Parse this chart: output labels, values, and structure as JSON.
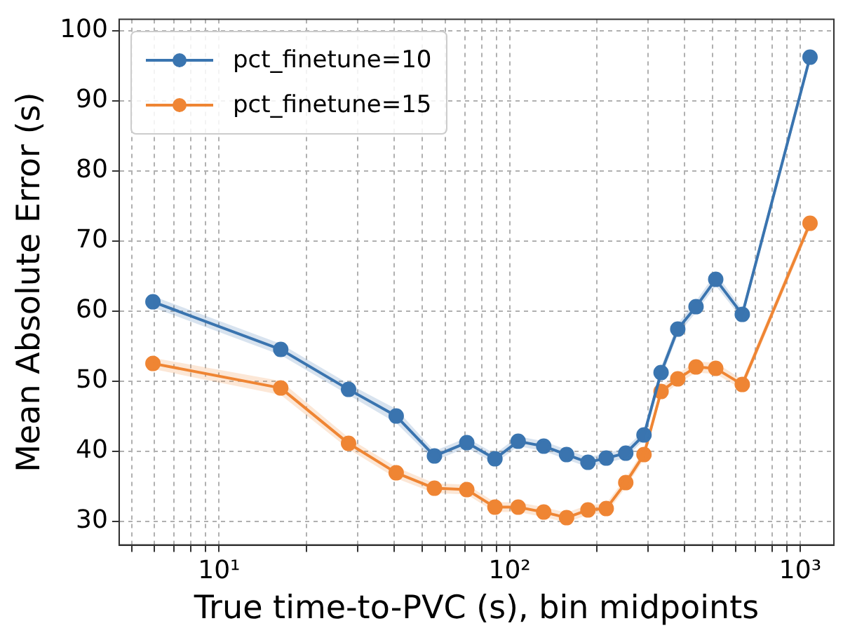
{
  "chart_data": {
    "type": "line",
    "xlabel": "True time-to-PVC (s), bin midpoints",
    "ylabel": "Mean Absolute Error (s)",
    "x": [
      5.92,
      16.3,
      27.9,
      40.7,
      55.1,
      71.2,
      89,
      107,
      131,
      157,
      186,
      215,
      251,
      290,
      332,
      379,
      438,
      512,
      632,
      1081
    ],
    "series": [
      {
        "name": "pct_finetune=10",
        "color": "#3a75b0",
        "values": [
          61.3,
          54.5,
          48.8,
          45,
          39.3,
          41.2,
          38.9,
          41.4,
          40.7,
          39.5,
          38.4,
          39,
          39.7,
          42.3,
          51.2,
          57.4,
          60.6,
          64.5,
          59.5,
          96.2
        ],
        "lower": [
          60.5,
          53.7,
          48,
          44,
          38.6,
          40.5,
          38.2,
          40.7,
          40,
          38.8,
          37.7,
          38.3,
          39,
          41.6,
          50.4,
          56.6,
          59.8,
          63.6,
          58.8,
          95.5
        ],
        "upper": [
          62.1,
          55.3,
          49.6,
          46,
          40,
          41.9,
          39.6,
          42.1,
          41.4,
          40.2,
          39.1,
          39.7,
          40.4,
          43,
          52,
          58.2,
          61.4,
          65.4,
          60.2,
          96.9
        ]
      },
      {
        "name": "pct_finetune=15",
        "color": "#ef8534",
        "values": [
          52.5,
          49,
          41.1,
          36.9,
          34.7,
          34.5,
          32,
          32,
          31.3,
          30.5,
          31.6,
          31.8,
          35.5,
          39.5,
          48.5,
          50.3,
          52,
          51.8,
          49.5,
          72.5
        ],
        "lower": [
          51.7,
          48,
          40.3,
          36.1,
          34,
          33.8,
          31.3,
          31.3,
          30.6,
          29.8,
          30.9,
          31.1,
          34.8,
          38.8,
          47.8,
          49.6,
          51.2,
          51,
          48.8,
          71.8
        ],
        "upper": [
          53.3,
          50,
          41.9,
          37.7,
          35.4,
          35.2,
          32.7,
          32.7,
          32,
          31.2,
          32.3,
          32.5,
          36.2,
          40.2,
          49.2,
          51,
          52.8,
          52.6,
          50.2,
          73.2
        ]
      }
    ],
    "log": "x",
    "xlim": [
      4.53,
      1306
    ],
    "xticks": [
      {
        "value": 5,
        "label": null
      },
      {
        "value": 6,
        "label": null
      },
      {
        "value": 7,
        "label": null
      },
      {
        "value": 8,
        "label": null
      },
      {
        "value": 9,
        "label": null
      },
      {
        "value": 10,
        "label": "10¹"
      },
      {
        "value": 20,
        "label": null
      },
      {
        "value": 30,
        "label": null
      },
      {
        "value": 40,
        "label": null
      },
      {
        "value": 50,
        "label": null
      },
      {
        "value": 60,
        "label": null
      },
      {
        "value": 70,
        "label": null
      },
      {
        "value": 80,
        "label": null
      },
      {
        "value": 90,
        "label": null
      },
      {
        "value": 100,
        "label": "10²"
      },
      {
        "value": 200,
        "label": null
      },
      {
        "value": 300,
        "label": null
      },
      {
        "value": 400,
        "label": null
      },
      {
        "value": 500,
        "label": null
      },
      {
        "value": 600,
        "label": null
      },
      {
        "value": 700,
        "label": null
      },
      {
        "value": 800,
        "label": null
      },
      {
        "value": 900,
        "label": null
      },
      {
        "value": 1000,
        "label": "10³"
      }
    ],
    "ylim": [
      26.6,
      101.6
    ],
    "yticks": [
      30,
      40,
      50,
      60,
      70,
      80,
      90,
      100
    ],
    "grid": true,
    "legend": "top left",
    "marker": "circle",
    "line_style": "solid"
  }
}
